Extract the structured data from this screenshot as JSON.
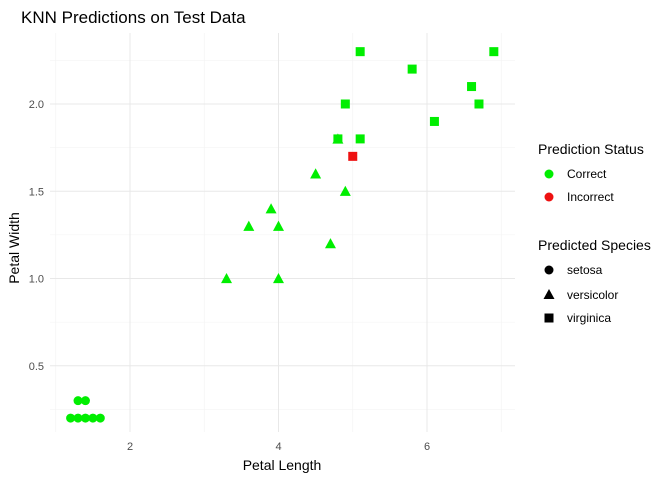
{
  "chart_data": {
    "type": "scatter",
    "title": "KNN Predictions on Test Data",
    "xlabel": "Petal Length",
    "ylabel": "Petal Width",
    "xlim": [
      1.0,
      7.0
    ],
    "ylim": [
      0.1,
      2.4
    ],
    "x_ticks": [
      2,
      4,
      6
    ],
    "y_ticks": [
      0.5,
      1.0,
      1.5,
      2.0
    ],
    "x_tick_labels": [
      "2",
      "4",
      "6"
    ],
    "y_tick_labels": [
      "0.5",
      "1.0",
      "1.5",
      "2.0"
    ],
    "grid": true,
    "legend_placement": "right",
    "colors": {
      "Correct": "#00ee00",
      "Incorrect": "#ee1111"
    },
    "legends": {
      "status": {
        "title": "Prediction Status",
        "items": [
          "Correct",
          "Incorrect"
        ]
      },
      "species": {
        "title": "Predicted Species",
        "items": [
          "setosa",
          "versicolor",
          "virginica"
        ]
      }
    },
    "points": [
      {
        "x": 1.2,
        "y": 0.2,
        "species": "setosa",
        "status": "Correct"
      },
      {
        "x": 1.3,
        "y": 0.2,
        "species": "setosa",
        "status": "Correct"
      },
      {
        "x": 1.3,
        "y": 0.3,
        "species": "setosa",
        "status": "Correct"
      },
      {
        "x": 1.4,
        "y": 0.2,
        "species": "setosa",
        "status": "Correct"
      },
      {
        "x": 1.4,
        "y": 0.3,
        "species": "setosa",
        "status": "Correct"
      },
      {
        "x": 1.5,
        "y": 0.2,
        "species": "setosa",
        "status": "Correct"
      },
      {
        "x": 1.6,
        "y": 0.2,
        "species": "setosa",
        "status": "Correct"
      },
      {
        "x": 3.3,
        "y": 1.0,
        "species": "versicolor",
        "status": "Correct"
      },
      {
        "x": 3.6,
        "y": 1.3,
        "species": "versicolor",
        "status": "Correct"
      },
      {
        "x": 3.9,
        "y": 1.4,
        "species": "versicolor",
        "status": "Correct"
      },
      {
        "x": 4.0,
        "y": 1.0,
        "species": "versicolor",
        "status": "Correct"
      },
      {
        "x": 4.0,
        "y": 1.3,
        "species": "versicolor",
        "status": "Correct"
      },
      {
        "x": 4.5,
        "y": 1.6,
        "species": "versicolor",
        "status": "Correct"
      },
      {
        "x": 4.7,
        "y": 1.2,
        "species": "versicolor",
        "status": "Correct"
      },
      {
        "x": 4.8,
        "y": 1.8,
        "species": "versicolor",
        "status": "Correct"
      },
      {
        "x": 4.9,
        "y": 1.5,
        "species": "versicolor",
        "status": "Correct"
      },
      {
        "x": 4.8,
        "y": 1.8,
        "species": "virginica",
        "status": "Correct"
      },
      {
        "x": 4.9,
        "y": 2.0,
        "species": "virginica",
        "status": "Correct"
      },
      {
        "x": 5.0,
        "y": 1.7,
        "species": "virginica",
        "status": "Incorrect"
      },
      {
        "x": 5.1,
        "y": 2.3,
        "species": "virginica",
        "status": "Correct"
      },
      {
        "x": 5.1,
        "y": 1.8,
        "species": "virginica",
        "status": "Correct"
      },
      {
        "x": 5.8,
        "y": 2.2,
        "species": "virginica",
        "status": "Correct"
      },
      {
        "x": 6.1,
        "y": 1.9,
        "species": "virginica",
        "status": "Correct"
      },
      {
        "x": 6.6,
        "y": 2.1,
        "species": "virginica",
        "status": "Correct"
      },
      {
        "x": 6.7,
        "y": 2.0,
        "species": "virginica",
        "status": "Correct"
      },
      {
        "x": 6.9,
        "y": 2.3,
        "species": "virginica",
        "status": "Correct"
      }
    ]
  }
}
